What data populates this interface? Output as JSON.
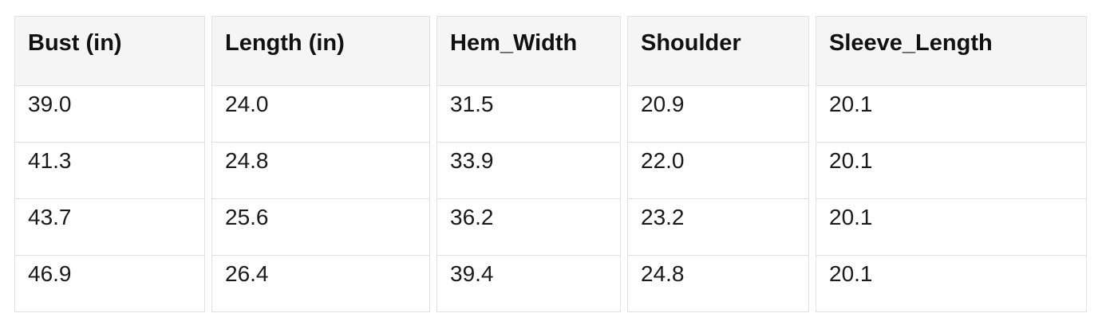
{
  "chart_data": {
    "type": "table",
    "columns": [
      "Bust (in)",
      "Length (in)",
      "Hem_Width",
      "Shoulder",
      "Sleeve_Length"
    ],
    "rows": [
      [
        "39.0",
        "24.0",
        "31.5",
        "20.9",
        "20.1"
      ],
      [
        "41.3",
        "24.8",
        "33.9",
        "22.0",
        "20.1"
      ],
      [
        "43.7",
        "25.6",
        "36.2",
        "23.2",
        "20.1"
      ],
      [
        "46.9",
        "26.4",
        "39.4",
        "24.8",
        "20.1"
      ]
    ]
  },
  "style": {
    "header_bg": "#f5f5f5",
    "border_color": "#e1e1e1",
    "header_text_color": "#111111",
    "cell_text_color": "#1a1a1a",
    "page_background": "#ffffff"
  }
}
